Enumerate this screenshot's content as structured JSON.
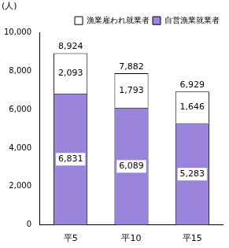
{
  "chart_data": {
    "type": "bar",
    "stacked": true,
    "y_label": "(人)",
    "categories": [
      "平5",
      "平10",
      "平15"
    ],
    "series": [
      {
        "name": "自営漁業就業者",
        "color": "#9b84dc",
        "values": [
          6831,
          6089,
          5283
        ],
        "value_labels": [
          "6,831",
          "6,089",
          "5,283"
        ]
      },
      {
        "name": "漁業雇われ就業者",
        "color": "#ffffff",
        "values": [
          2093,
          1793,
          1646
        ],
        "value_labels": [
          "2,093",
          "1,793",
          "1,646"
        ]
      }
    ],
    "totals": [
      8924,
      7882,
      6929
    ],
    "total_labels": [
      "8,924",
      "7,882",
      "6,929"
    ],
    "ylim": [
      0,
      10000
    ],
    "yticks": [
      0,
      {
        "value": 2000,
        "label": "2,000"
      },
      {
        "value": 4000,
        "label": "4,000"
      },
      {
        "value": 6000,
        "label": "6,000"
      },
      {
        "value": 8000,
        "label": "8,000"
      },
      {
        "value": 10000,
        "label": "10,000"
      }
    ],
    "grid": false,
    "legend": "top-right",
    "data_labels": true
  }
}
